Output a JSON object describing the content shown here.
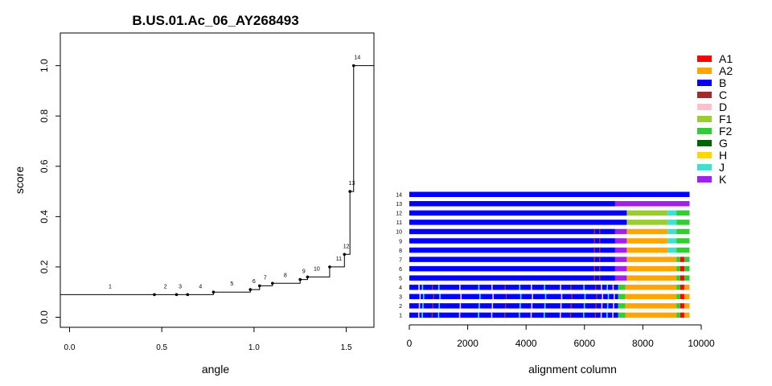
{
  "chart_data": [
    {
      "type": "line",
      "title": "B.US.01.Ac_06_AY268493",
      "xlabel": "angle",
      "ylabel": "score",
      "xlim": [
        -0.05,
        1.65
      ],
      "ylim": [
        -0.04,
        1.13
      ],
      "x_ticks": [
        "0.0",
        "0.5",
        "1.0",
        "1.5"
      ],
      "y_ticks": [
        "0.0",
        "0.2",
        "0.4",
        "0.6",
        "0.8",
        "1.0"
      ],
      "step": true,
      "x": [
        -0.05,
        0.46,
        0.58,
        0.64,
        0.78,
        0.98,
        1.03,
        1.1,
        1.25,
        1.29,
        1.41,
        1.49,
        1.52,
        1.54,
        1.65
      ],
      "y": [
        0.09,
        0.09,
        0.09,
        0.09,
        0.1,
        0.11,
        0.125,
        0.135,
        0.15,
        0.16,
        0.2,
        0.25,
        0.5,
        1.0,
        1.0
      ],
      "points": [
        {
          "x": 0.46,
          "y": 0.09
        },
        {
          "x": 0.58,
          "y": 0.09
        },
        {
          "x": 0.64,
          "y": 0.09
        },
        {
          "x": 0.78,
          "y": 0.1
        },
        {
          "x": 0.98,
          "y": 0.11
        },
        {
          "x": 1.03,
          "y": 0.125
        },
        {
          "x": 1.1,
          "y": 0.135
        },
        {
          "x": 1.25,
          "y": 0.15
        },
        {
          "x": 1.29,
          "y": 0.16
        },
        {
          "x": 1.41,
          "y": 0.2
        },
        {
          "x": 1.49,
          "y": 0.25
        },
        {
          "x": 1.52,
          "y": 0.5
        },
        {
          "x": 1.54,
          "y": 1.0
        }
      ],
      "annotations": [
        {
          "text": "1",
          "x": 0.22,
          "y": 0.09
        },
        {
          "text": "2",
          "x": 0.52,
          "y": 0.09
        },
        {
          "text": "3",
          "x": 0.6,
          "y": 0.09
        },
        {
          "text": "4",
          "x": 0.71,
          "y": 0.09
        },
        {
          "text": "5",
          "x": 0.88,
          "y": 0.1
        },
        {
          "text": "6",
          "x": 1.0,
          "y": 0.11
        },
        {
          "text": "7",
          "x": 1.06,
          "y": 0.125
        },
        {
          "text": "8",
          "x": 1.17,
          "y": 0.135
        },
        {
          "text": "9",
          "x": 1.27,
          "y": 0.15
        },
        {
          "text": "10",
          "x": 1.34,
          "y": 0.16
        },
        {
          "text": "11",
          "x": 1.46,
          "y": 0.2
        },
        {
          "text": "12",
          "x": 1.5,
          "y": 0.25
        },
        {
          "text": "13",
          "x": 1.53,
          "y": 0.5
        },
        {
          "text": "14",
          "x": 1.56,
          "y": 1.0
        }
      ]
    },
    {
      "type": "bar",
      "orientation": "horizontal",
      "stacked": true,
      "xlabel": "alignment column",
      "x_ticks": [
        "0",
        "2000",
        "4000",
        "6000",
        "8000",
        "10000"
      ],
      "xlim": [
        0,
        10000
      ],
      "legend_position": "top-right",
      "legend": [
        {
          "name": "A1",
          "color": "#ff0000"
        },
        {
          "name": "A2",
          "color": "#ffa500"
        },
        {
          "name": "B",
          "color": "#0000ff"
        },
        {
          "name": "C",
          "color": "#a52a2a"
        },
        {
          "name": "D",
          "color": "#ffc0cb"
        },
        {
          "name": "F1",
          "color": "#9acd32"
        },
        {
          "name": "F2",
          "color": "#32cd32"
        },
        {
          "name": "G",
          "color": "#006400"
        },
        {
          "name": "H",
          "color": "#ffd700"
        },
        {
          "name": "J",
          "color": "#40e0d0"
        },
        {
          "name": "K",
          "color": "#a020f0"
        }
      ],
      "rows": [
        {
          "label": "14",
          "segments": [
            [
              "B",
              0,
              9600
            ]
          ]
        },
        {
          "label": "13",
          "segments": [
            [
              "B",
              0,
              7050
            ],
            [
              "K",
              7050,
              9600
            ]
          ]
        },
        {
          "label": "12",
          "segments": [
            [
              "B",
              0,
              7450
            ],
            [
              "F1",
              7450,
              8850
            ],
            [
              "J",
              8850,
              9150
            ],
            [
              "F2",
              9150,
              9600
            ]
          ]
        },
        {
          "label": "11",
          "segments": [
            [
              "B",
              0,
              7450
            ],
            [
              "F1",
              7450,
              8850
            ],
            [
              "J",
              8850,
              9150
            ],
            [
              "F2",
              9150,
              9600
            ]
          ]
        },
        {
          "label": "10",
          "segments": [
            [
              "B",
              0,
              7050
            ],
            [
              "K",
              7050,
              7450
            ],
            [
              "A2",
              7450,
              8850
            ],
            [
              "J",
              8850,
              9150
            ],
            [
              "F2",
              9150,
              9600
            ]
          ]
        },
        {
          "label": "9",
          "segments": [
            [
              "B",
              0,
              7050
            ],
            [
              "K",
              7050,
              7450
            ],
            [
              "A2",
              7450,
              8850
            ],
            [
              "J",
              8850,
              9150
            ],
            [
              "F2",
              9150,
              9600
            ]
          ]
        },
        {
          "label": "8",
          "segments": [
            [
              "B",
              0,
              7050
            ],
            [
              "K",
              7050,
              7450
            ],
            [
              "A2",
              7450,
              8850
            ],
            [
              "J",
              8850,
              9150
            ],
            [
              "F2",
              9150,
              9600
            ]
          ]
        },
        {
          "label": "7",
          "segments": [
            [
              "B",
              0,
              7050
            ],
            [
              "K",
              7050,
              7450
            ],
            [
              "A2",
              7450,
              9150
            ],
            [
              "F2",
              9150,
              9280
            ],
            [
              "A1",
              9280,
              9420
            ],
            [
              "F2",
              9420,
              9600
            ]
          ]
        },
        {
          "label": "6",
          "segments": [
            [
              "B",
              0,
              7050
            ],
            [
              "K",
              7050,
              7450
            ],
            [
              "A2",
              7450,
              9150
            ],
            [
              "F2",
              9150,
              9280
            ],
            [
              "A1",
              9280,
              9420
            ],
            [
              "F2",
              9420,
              9600
            ]
          ]
        },
        {
          "label": "5",
          "segments": [
            [
              "B",
              0,
              7050
            ],
            [
              "K",
              7050,
              7450
            ],
            [
              "A2",
              7450,
              9150
            ],
            [
              "F2",
              9150,
              9280
            ],
            [
              "A1",
              9280,
              9420
            ],
            [
              "F2",
              9420,
              9600
            ]
          ]
        },
        {
          "label": "4",
          "segments": [
            [
              "B",
              0,
              7150
            ],
            [
              "F2",
              7150,
              7400
            ],
            [
              "A2",
              7400,
              9150
            ],
            [
              "F2",
              9150,
              9280
            ],
            [
              "A1",
              9280,
              9420
            ],
            [
              "A2",
              9420,
              9600
            ]
          ]
        },
        {
          "label": "3",
          "segments": [
            [
              "B",
              0,
              7150
            ],
            [
              "F2",
              7150,
              7400
            ],
            [
              "A2",
              7400,
              9150
            ],
            [
              "F2",
              9150,
              9280
            ],
            [
              "A1",
              9280,
              9420
            ],
            [
              "A2",
              9420,
              9600
            ]
          ]
        },
        {
          "label": "2",
          "segments": [
            [
              "B",
              0,
              7150
            ],
            [
              "F2",
              7150,
              7400
            ],
            [
              "A2",
              7400,
              9150
            ],
            [
              "F2",
              9150,
              9280
            ],
            [
              "A1",
              9280,
              9420
            ],
            [
              "A2",
              9420,
              9600
            ]
          ]
        },
        {
          "label": "1",
          "segments": [
            [
              "B",
              0,
              7150
            ],
            [
              "F2",
              7150,
              7400
            ],
            [
              "A2",
              7400,
              9150
            ],
            [
              "F2",
              9150,
              9280
            ],
            [
              "A1",
              9280,
              9420
            ],
            [
              "A2",
              9420,
              9600
            ]
          ]
        }
      ]
    }
  ]
}
